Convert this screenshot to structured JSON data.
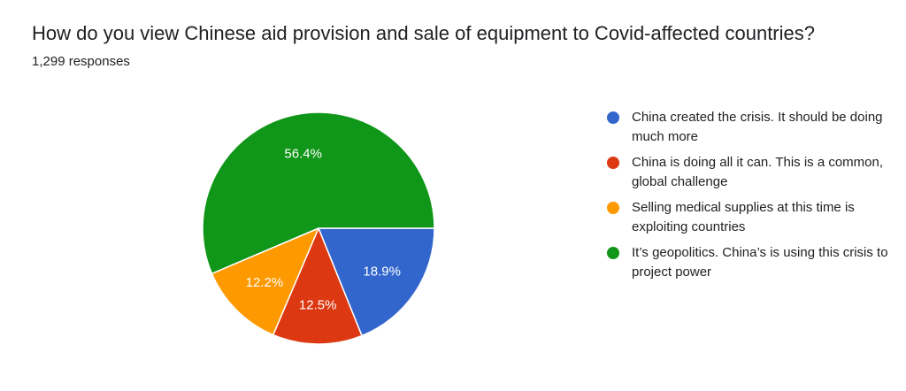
{
  "header": {
    "title": "How do you view Chinese aid provision and sale of equipment to Covid-affected countries?",
    "responses": "1,299 responses"
  },
  "chart_data": {
    "type": "pie",
    "title": "How do you view Chinese aid provision and sale of equipment to Covid-affected countries?",
    "slices": [
      {
        "label": "China created the crisis. It should be doing much more",
        "value": 18.9,
        "display": "18.9%",
        "color": "#3366cc"
      },
      {
        "label": "China is doing all it can. This is a common, global challenge",
        "value": 12.5,
        "display": "12.5%",
        "color": "#dc3912"
      },
      {
        "label": "Selling medical supplies at this time is exploiting countries",
        "value": 12.2,
        "display": "12.2%",
        "color": "#ff9900"
      },
      {
        "label": "It’s geopolitics. China’s is using this crisis to project power",
        "value": 56.4,
        "display": "56.4%",
        "color": "#109618"
      }
    ],
    "legend_position": "right",
    "slice_label_color": "#ffffff"
  }
}
